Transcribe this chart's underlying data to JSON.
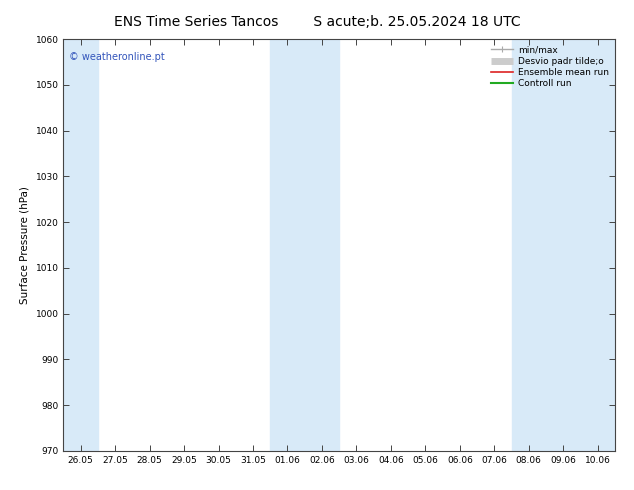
{
  "title_left": "ENS Time Series Tancos",
  "title_right": "S acute;b. 25.05.2024 18 UTC",
  "ylabel": "Surface Pressure (hPa)",
  "ylim": [
    970,
    1060
  ],
  "yticks": [
    970,
    980,
    990,
    1000,
    1010,
    1020,
    1030,
    1040,
    1050,
    1060
  ],
  "xtick_labels": [
    "26.05",
    "27.05",
    "28.05",
    "29.05",
    "30.05",
    "31.05",
    "01.06",
    "02.06",
    "03.06",
    "04.06",
    "05.06",
    "06.06",
    "07.06",
    "08.06",
    "09.06",
    "10.06"
  ],
  "shaded_indices": [
    0,
    6,
    7,
    13,
    14,
    15
  ],
  "shaded_color": "#d8eaf8",
  "background_color": "#ffffff",
  "plot_bg_color": "#ffffff",
  "watermark": "© weatheronline.pt",
  "watermark_color": "#3355bb",
  "legend_items": [
    {
      "label": "min/max",
      "color": "#aaaaaa",
      "lw": 1.0,
      "style": "errorbar"
    },
    {
      "label": "Desvio padr tilde;o",
      "color": "#cccccc",
      "lw": 5,
      "style": "thick"
    },
    {
      "label": "Ensemble mean run",
      "color": "#dd2222",
      "lw": 1.2,
      "style": "line"
    },
    {
      "label": "Controll run",
      "color": "#22aa22",
      "lw": 1.5,
      "style": "line"
    }
  ],
  "title_fontsize": 10,
  "axis_fontsize": 7.5,
  "tick_fontsize": 6.5,
  "legend_fontsize": 6.5
}
